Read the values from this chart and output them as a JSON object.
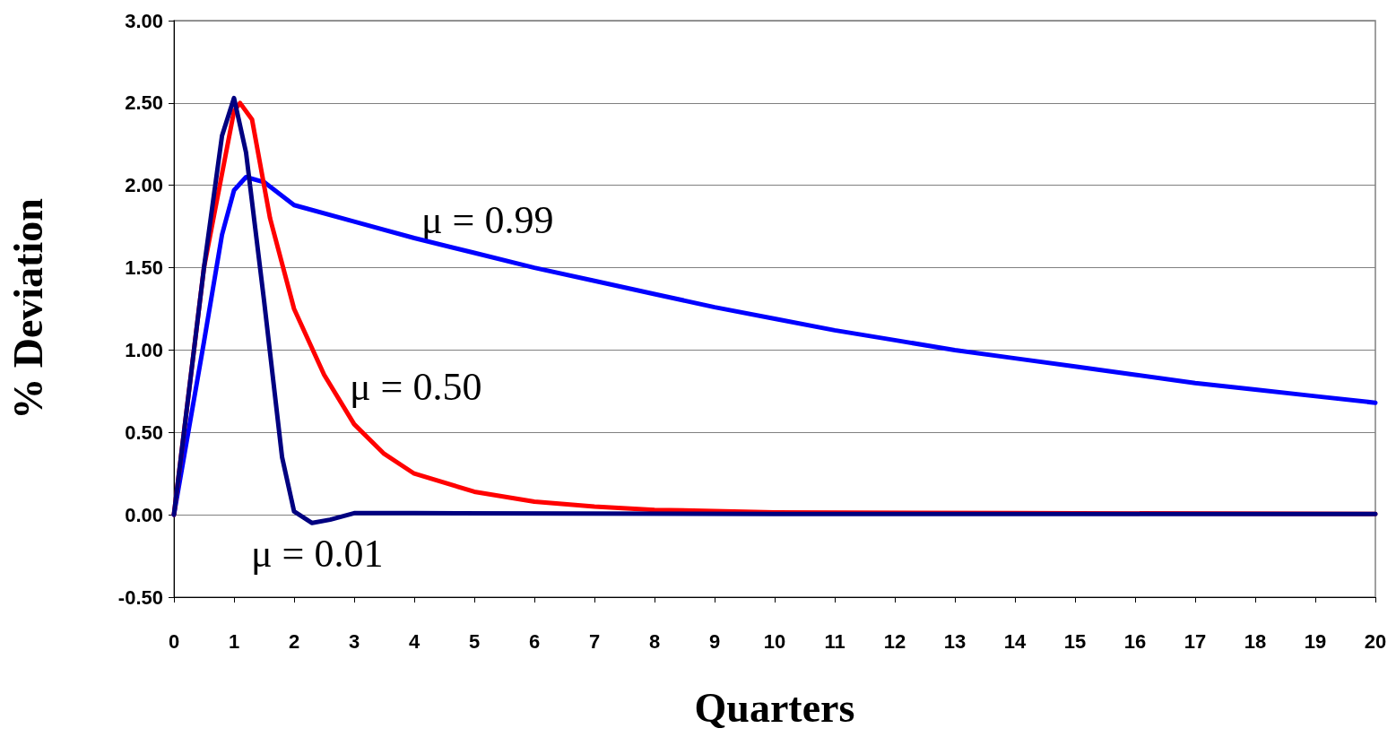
{
  "chart_data": {
    "type": "line",
    "xlabel": "Quarters",
    "ylabel": "% Deviation",
    "xlim": [
      0,
      20
    ],
    "xticks": [
      0,
      1,
      2,
      3,
      4,
      5,
      6,
      7,
      8,
      9,
      10,
      11,
      12,
      13,
      14,
      15,
      16,
      17,
      18,
      19,
      20
    ],
    "ylim": [
      -0.5,
      3
    ],
    "yticks": [
      {
        "value": -0.5,
        "label": "-0.50"
      },
      {
        "value": 0,
        "label": "0.00"
      },
      {
        "value": 0.5,
        "label": "0.50"
      },
      {
        "value": 1,
        "label": "1.00"
      },
      {
        "value": 1.5,
        "label": "1.50"
      },
      {
        "value": 2,
        "label": "2.00"
      },
      {
        "value": 2.5,
        "label": "2.50"
      },
      {
        "value": 3,
        "label": "3.00"
      }
    ],
    "grid": "y",
    "marker": "none",
    "line_style": "solid",
    "series": [
      {
        "color": "#0000ff",
        "x": [
          0,
          0.5,
          0.8,
          1,
          1.2,
          1.5,
          2,
          3,
          4,
          5,
          6,
          7,
          8,
          9,
          10,
          11,
          12,
          13,
          14,
          15,
          16,
          17,
          18,
          19,
          20
        ],
        "values": [
          0,
          1.05,
          1.7,
          1.97,
          2.05,
          2.02,
          1.88,
          1.78,
          1.68,
          1.59,
          1.5,
          1.42,
          1.34,
          1.26,
          1.19,
          1.12,
          1.06,
          1.0,
          0.95,
          0.9,
          0.85,
          0.8,
          0.76,
          0.72,
          0.68
        ]
      },
      {
        "color": "#ff0000",
        "x": [
          0,
          0.5,
          1,
          1.1,
          1.3,
          1.6,
          2,
          2.5,
          3,
          3.5,
          4,
          5,
          6,
          7,
          8,
          10,
          14,
          20
        ],
        "values": [
          0,
          1.5,
          2.45,
          2.5,
          2.4,
          1.8,
          1.25,
          0.85,
          0.55,
          0.37,
          0.25,
          0.14,
          0.08,
          0.05,
          0.03,
          0.015,
          0.01,
          0.005
        ]
      },
      {
        "color": "#000080",
        "x": [
          0,
          0.5,
          0.8,
          1,
          1.2,
          1.5,
          1.8,
          2,
          2.3,
          2.6,
          3,
          4,
          10,
          20
        ],
        "values": [
          0,
          1.5,
          2.3,
          2.53,
          2.2,
          1.3,
          0.35,
          0.02,
          -0.05,
          -0.03,
          0.01,
          0.01,
          0.005,
          0.005
        ]
      }
    ],
    "annotations": [
      "μ = 0.99",
      "μ = 0.50",
      "μ = 0.01"
    ]
  }
}
